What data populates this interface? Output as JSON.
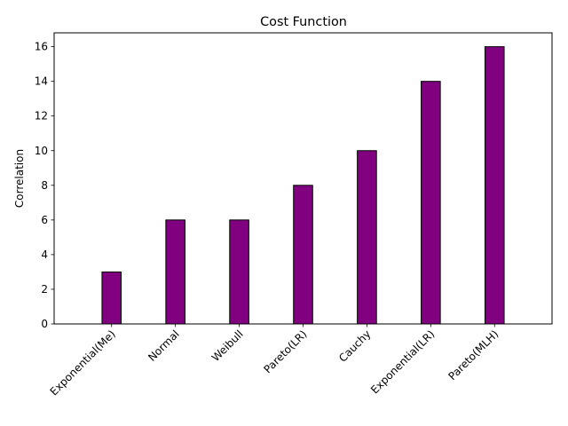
{
  "chart_data": {
    "type": "bar",
    "title": "Cost Function",
    "xlabel": "",
    "ylabel": "Correlation",
    "categories": [
      "Exponential(Me)",
      "Normal",
      "Weibull",
      "Pareto(LR)",
      "Cauchy",
      "Exponential(LR)",
      "Pareto(MLH)"
    ],
    "values": [
      3,
      6,
      6,
      8,
      10,
      14,
      16
    ],
    "ylim": [
      0,
      16.8
    ],
    "yticks": [
      0,
      2,
      4,
      6,
      8,
      10,
      12,
      14,
      16
    ],
    "bar_color": "#800080",
    "edge_color": "#000000",
    "grid": false,
    "xtick_rotation_deg": 45
  }
}
